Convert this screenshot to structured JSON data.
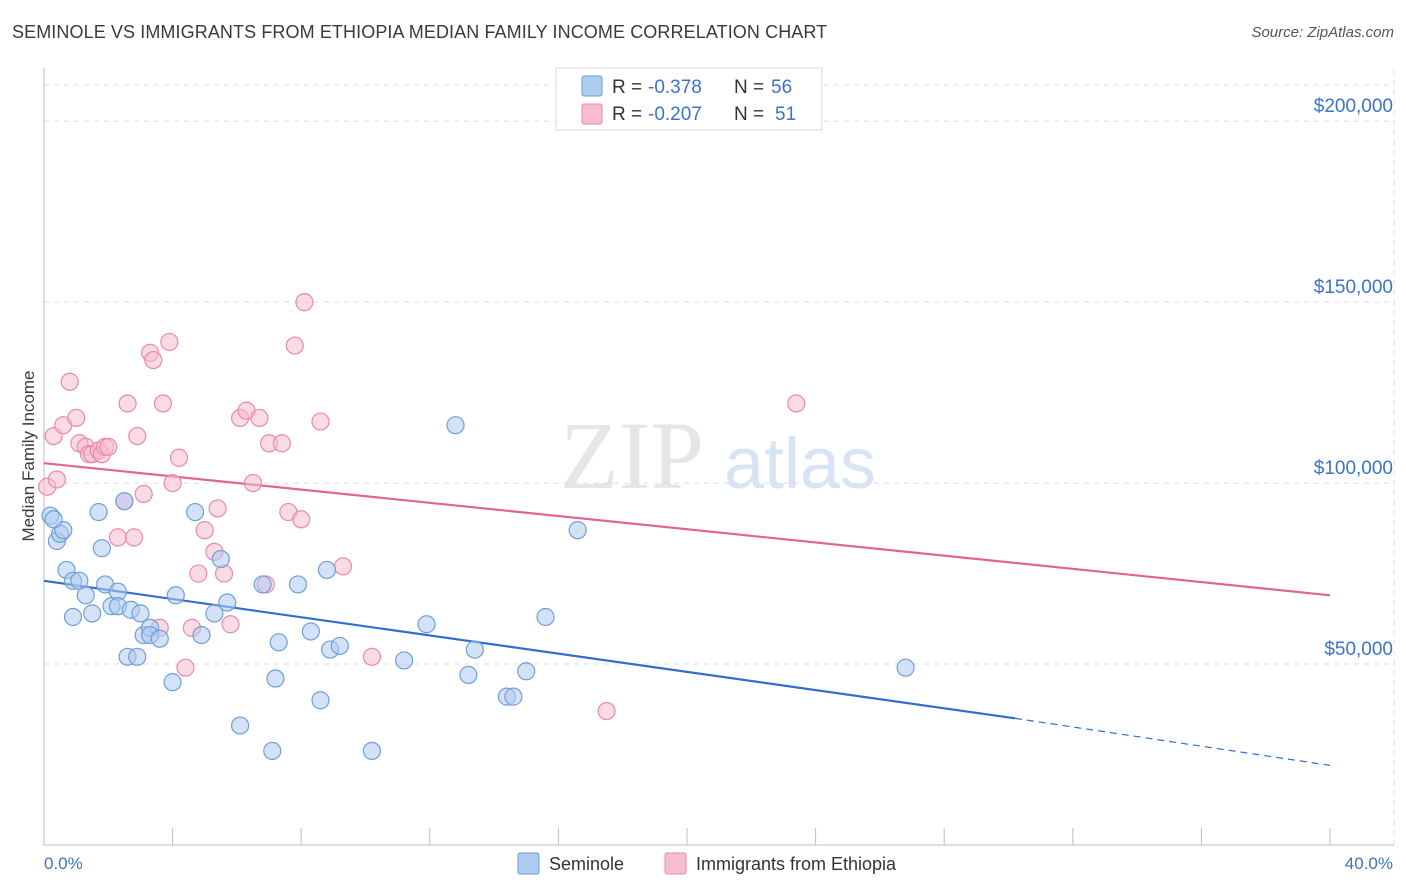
{
  "title": "SEMINOLE VS IMMIGRANTS FROM ETHIOPIA MEDIAN FAMILY INCOME CORRELATION CHART",
  "source": "Source: ZipAtlas.com",
  "watermark": {
    "zip": "ZIP",
    "atlas": "atlas"
  },
  "legend_top": [
    {
      "r_label": "R =",
      "r_value": "-0.378",
      "n_label": "N =",
      "n_value": "56"
    },
    {
      "r_label": "R =",
      "r_value": "-0.207",
      "n_label": "N =",
      "n_value": "51"
    }
  ],
  "colors": {
    "blue_fill": "#aecbf0",
    "blue_stroke": "#6f9fd8",
    "blue_line": "#2f6fcf",
    "pink_fill": "#f6bcd0",
    "pink_stroke": "#e98aab",
    "pink_line": "#e06690",
    "axis_text": "#3b73c8",
    "grid": "#dedede"
  },
  "chart_data": {
    "type": "scatter",
    "ylabel": "Median Family Income",
    "xlim": [
      0,
      40
    ],
    "ylim": [
      0,
      210000
    ],
    "y_ticks": [
      50000,
      100000,
      150000,
      200000
    ],
    "y_tick_labels": [
      "$50,000",
      "$100,000",
      "$150,000",
      "$200,000"
    ],
    "x_tick_labels": {
      "min": "0.0%",
      "max": "40.0%"
    },
    "grid": true,
    "legend_position": "bottom",
    "series": [
      {
        "name": "Seminole",
        "r": -0.378,
        "n": 56,
        "trend": {
          "x0": 0,
          "y0": 73000,
          "x1": 30.2,
          "y1": 35000,
          "dash_x1": 40,
          "dash_y1": 22000
        },
        "points": [
          [
            0.2,
            91000
          ],
          [
            0.4,
            84000
          ],
          [
            0.5,
            86000
          ],
          [
            0.6,
            87000
          ],
          [
            0.7,
            76000
          ],
          [
            0.9,
            73000
          ],
          [
            1.1,
            73000
          ],
          [
            1.3,
            69000
          ],
          [
            0.9,
            63000
          ],
          [
            1.5,
            64000
          ],
          [
            1.7,
            92000
          ],
          [
            1.8,
            82000
          ],
          [
            1.9,
            72000
          ],
          [
            2.1,
            66000
          ],
          [
            2.3,
            70000
          ],
          [
            2.3,
            66000
          ],
          [
            2.5,
            95000
          ],
          [
            2.6,
            52000
          ],
          [
            2.7,
            65000
          ],
          [
            2.9,
            52000
          ],
          [
            3.0,
            64000
          ],
          [
            3.1,
            58000
          ],
          [
            3.3,
            60000
          ],
          [
            3.3,
            58000
          ],
          [
            3.6,
            57000
          ],
          [
            4.0,
            45000
          ],
          [
            4.1,
            69000
          ],
          [
            4.7,
            92000
          ],
          [
            5.3,
            64000
          ],
          [
            5.5,
            79000
          ],
          [
            5.7,
            67000
          ],
          [
            6.1,
            33000
          ],
          [
            6.8,
            72000
          ],
          [
            7.1,
            26000
          ],
          [
            7.2,
            46000
          ],
          [
            7.3,
            56000
          ],
          [
            7.9,
            72000
          ],
          [
            8.3,
            59000
          ],
          [
            8.6,
            40000
          ],
          [
            8.8,
            76000
          ],
          [
            8.9,
            54000
          ],
          [
            9.2,
            55000
          ],
          [
            10.2,
            26000
          ],
          [
            11.2,
            51000
          ],
          [
            11.9,
            61000
          ],
          [
            12.8,
            116000
          ],
          [
            13.2,
            47000
          ],
          [
            13.4,
            54000
          ],
          [
            14.4,
            41000
          ],
          [
            14.6,
            41000
          ],
          [
            15.0,
            48000
          ],
          [
            15.6,
            63000
          ],
          [
            16.6,
            87000
          ],
          [
            26.8,
            49000
          ],
          [
            0.3,
            90000
          ],
          [
            4.9,
            58000
          ]
        ]
      },
      {
        "name": "Immigrants from Ethiopia",
        "r": -0.207,
        "n": 51,
        "trend": {
          "x0": 0,
          "y0": 105500,
          "x1": 40,
          "y1": 69000
        },
        "points": [
          [
            0.1,
            99000
          ],
          [
            0.3,
            113000
          ],
          [
            0.4,
            101000
          ],
          [
            0.6,
            116000
          ],
          [
            0.8,
            128000
          ],
          [
            1.0,
            118000
          ],
          [
            1.1,
            111000
          ],
          [
            1.3,
            110000
          ],
          [
            1.4,
            108000
          ],
          [
            1.5,
            108000
          ],
          [
            1.7,
            109000
          ],
          [
            1.8,
            108000
          ],
          [
            1.9,
            110000
          ],
          [
            2.0,
            110000
          ],
          [
            2.3,
            85000
          ],
          [
            2.5,
            95000
          ],
          [
            2.6,
            122000
          ],
          [
            2.8,
            85000
          ],
          [
            2.9,
            113000
          ],
          [
            3.1,
            97000
          ],
          [
            3.3,
            136000
          ],
          [
            3.4,
            134000
          ],
          [
            3.6,
            60000
          ],
          [
            3.7,
            122000
          ],
          [
            3.9,
            139000
          ],
          [
            4.0,
            100000
          ],
          [
            4.2,
            107000
          ],
          [
            4.4,
            49000
          ],
          [
            4.6,
            60000
          ],
          [
            4.8,
            75000
          ],
          [
            5.0,
            87000
          ],
          [
            5.3,
            81000
          ],
          [
            5.4,
            93000
          ],
          [
            5.6,
            75000
          ],
          [
            5.8,
            61000
          ],
          [
            6.1,
            118000
          ],
          [
            6.3,
            120000
          ],
          [
            6.5,
            100000
          ],
          [
            6.7,
            118000
          ],
          [
            6.9,
            72000
          ],
          [
            7.0,
            111000
          ],
          [
            7.4,
            111000
          ],
          [
            7.6,
            92000
          ],
          [
            7.8,
            138000
          ],
          [
            8.0,
            90000
          ],
          [
            8.1,
            150000
          ],
          [
            8.6,
            117000
          ],
          [
            9.3,
            77000
          ],
          [
            10.2,
            52000
          ],
          [
            17.5,
            37000
          ],
          [
            23.4,
            122000
          ]
        ]
      }
    ]
  }
}
